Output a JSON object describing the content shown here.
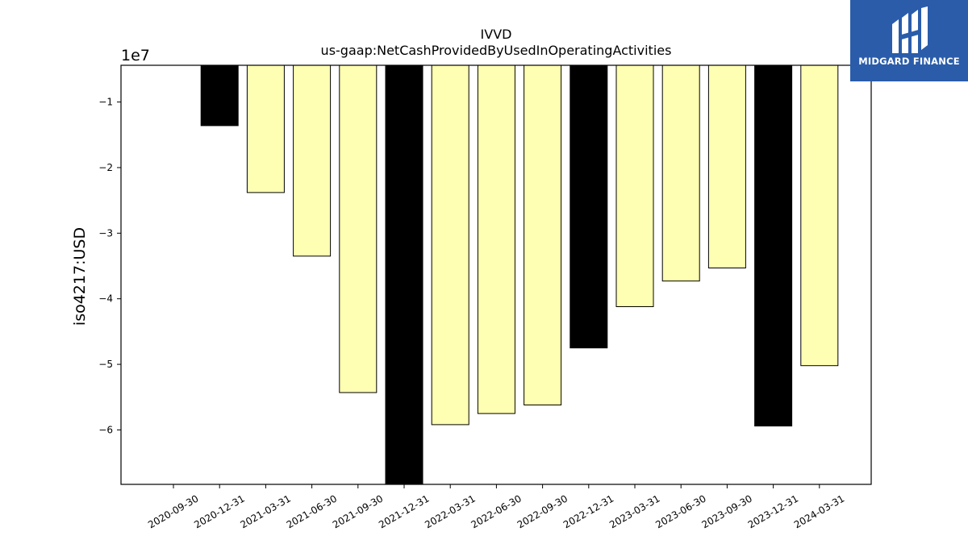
{
  "chart_data": {
    "type": "bar",
    "title": "IVVD",
    "subtitle": "us-gaap:NetCashProvidedByUsedInOperatingActivities",
    "ylabel": "iso4217:USD",
    "xlabel": "",
    "scale_label": "1e7",
    "ylim": [
      -68300000,
      -4400000
    ],
    "yticks": [
      -10000000,
      -20000000,
      -30000000,
      -40000000,
      -50000000,
      -60000000
    ],
    "ytick_labels": [
      "−1",
      "−2",
      "−3",
      "−4",
      "−5",
      "−6"
    ],
    "categories": [
      "2020-09-30",
      "2020-12-31",
      "2021-03-31",
      "2021-06-30",
      "2021-09-30",
      "2021-12-31",
      "2022-03-31",
      "2022-06-30",
      "2022-09-30",
      "2022-12-31",
      "2023-03-31",
      "2023-06-30",
      "2023-09-30",
      "2023-12-31",
      "2024-03-31"
    ],
    "values": [
      null,
      -13600000,
      -23800000,
      -33500000,
      -54300000,
      -68300000,
      -59200000,
      -57500000,
      -56200000,
      -47500000,
      -41200000,
      -37300000,
      -35300000,
      -59400000,
      -50200000
    ],
    "bar_colors": [
      "",
      "#000000",
      "#ffffb3",
      "#ffffb3",
      "#ffffb3",
      "#000000",
      "#ffffb3",
      "#ffffb3",
      "#ffffb3",
      "#000000",
      "#ffffb3",
      "#ffffb3",
      "#ffffb3",
      "#000000",
      "#ffffb3"
    ],
    "edge_color": "#000000",
    "grid": false
  },
  "logo": {
    "text": "MIDGARD FINANCE",
    "background": "#2a5caa"
  }
}
